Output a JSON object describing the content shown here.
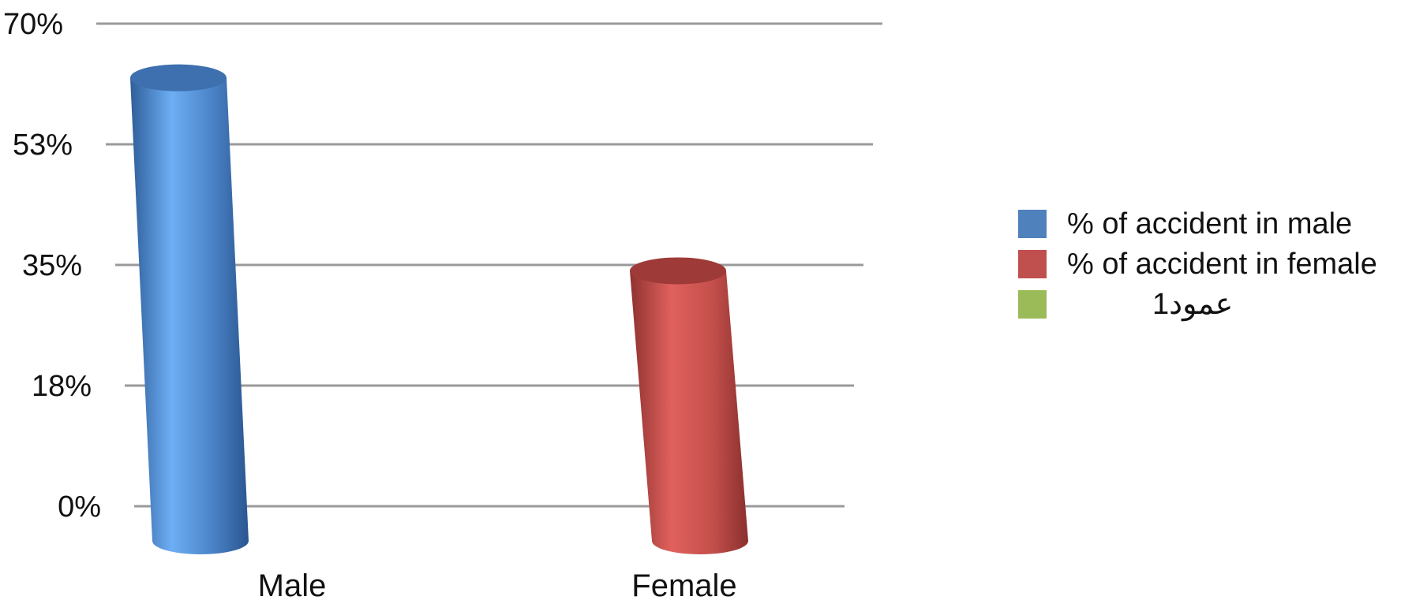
{
  "chart_data": {
    "type": "bar",
    "style": "3d-cylinder",
    "categories": [
      "Male",
      "Female"
    ],
    "series": [
      {
        "name": "% of accident in male",
        "color": "#4F81BD",
        "values": [
          61,
          null
        ]
      },
      {
        "name": "% of accident in female",
        "color": "#C0504D",
        "values": [
          null,
          33
        ]
      },
      {
        "name": "عمود1",
        "color": "#9BBB59",
        "values": [
          null,
          null
        ]
      }
    ],
    "y_ticks": [
      "0%",
      "18%",
      "35%",
      "53%",
      "70%"
    ],
    "y_tick_values": [
      0,
      17.5,
      35,
      52.5,
      70
    ],
    "ylim": [
      0,
      70
    ],
    "grid": true,
    "legend_position": "right"
  }
}
